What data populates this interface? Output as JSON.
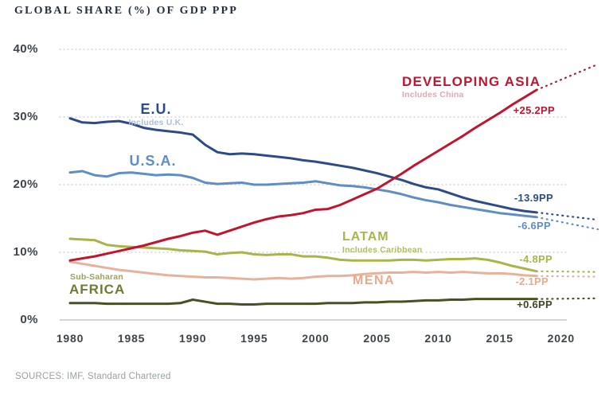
{
  "title": "GLOBAL SHARE (%) OF GDP PPP",
  "source_note": "SOURCES: IMF, Standard Chartered",
  "axis": {
    "y_label_color": "#3f444a",
    "grid_color": "#cbcbcb",
    "baseline_color": "#c6c6c6"
  },
  "chart_data": {
    "type": "line",
    "title": "GLOBAL SHARE (%) OF GDP PPP",
    "xlabel": "",
    "ylabel": "Global share (%) of GDP PPP",
    "xlim": [
      1980,
      2023.5
    ],
    "ylim": [
      0,
      40
    ],
    "grid": "horizontal-dotted",
    "legend_position": "inline-labels",
    "x_ticks": [
      1980,
      1985,
      1990,
      1995,
      2000,
      2005,
      2010,
      2015,
      2020
    ],
    "y_ticks": [
      {
        "label": "40%",
        "value": 40,
        "grid": "dotted"
      },
      {
        "label": "30%",
        "value": 30,
        "grid": "dotted"
      },
      {
        "label": "20%",
        "value": 20,
        "grid": "dotted"
      },
      {
        "label": "10%",
        "value": 10,
        "grid": "dotted"
      },
      {
        "label": "0%",
        "value": 0,
        "grid": "solid"
      }
    ],
    "x": [
      1980,
      1981,
      1982,
      1983,
      1984,
      1985,
      1986,
      1987,
      1988,
      1989,
      1990,
      1991,
      1992,
      1993,
      1994,
      1995,
      1996,
      1997,
      1998,
      1999,
      2000,
      2001,
      2002,
      2003,
      2004,
      2005,
      2006,
      2007,
      2008,
      2009,
      2010,
      2011,
      2012,
      2013,
      2014,
      2015,
      2016,
      2017,
      2018
    ],
    "series": [
      {
        "id": "eu",
        "name": "E.U.",
        "subtitle": "Includes U.K.",
        "subtitle_color": "#aebdd8",
        "color": "#2d4b88",
        "change_label": "-13.9PP",
        "change_color": "#2d4b88",
        "values": [
          29.8,
          29.2,
          29.1,
          29.3,
          29.4,
          29.0,
          28.4,
          28.1,
          27.9,
          27.7,
          27.4,
          25.9,
          24.8,
          24.5,
          24.6,
          24.5,
          24.3,
          24.1,
          23.9,
          23.6,
          23.4,
          23.1,
          22.8,
          22.5,
          22.1,
          21.7,
          21.2,
          20.7,
          20.1,
          19.6,
          19.3,
          18.7,
          18.1,
          17.6,
          17.2,
          16.8,
          16.4,
          16.1,
          15.9
        ],
        "projection": {
          "x": [
            2018,
            2023
          ],
          "values": [
            15.9,
            14.8
          ]
        }
      },
      {
        "id": "usa",
        "name": "U.S.A.",
        "subtitle": "",
        "subtitle_color": "#a9bad6",
        "color": "#5f8dc6",
        "change_label": "-6.6PP",
        "change_color": "#5f8dc6",
        "values": [
          21.8,
          22.0,
          21.4,
          21.2,
          21.7,
          21.8,
          21.6,
          21.4,
          21.5,
          21.4,
          21.0,
          20.3,
          20.1,
          20.2,
          20.3,
          20.0,
          20.0,
          20.1,
          20.2,
          20.3,
          20.5,
          20.2,
          19.9,
          19.8,
          19.6,
          19.3,
          19.0,
          18.6,
          18.1,
          17.7,
          17.4,
          17.0,
          16.7,
          16.4,
          16.1,
          15.8,
          15.6,
          15.4,
          15.2
        ],
        "projection": {
          "x": [
            2018,
            2023
          ],
          "values": [
            15.2,
            13.4
          ]
        }
      },
      {
        "id": "developing-asia",
        "name": "DEVELOPING ASIA",
        "subtitle": "Includes China",
        "subtitle_color": "#eaa4b1",
        "color": "#c3142f",
        "change_label": "+25.2PP",
        "change_color": "#c3142f",
        "values": [
          8.8,
          9.1,
          9.4,
          9.8,
          10.2,
          10.6,
          11.0,
          11.5,
          12.0,
          12.4,
          12.9,
          13.2,
          12.6,
          13.2,
          13.8,
          14.4,
          14.9,
          15.3,
          15.5,
          15.8,
          16.3,
          16.4,
          17.0,
          17.8,
          18.6,
          19.4,
          20.5,
          21.6,
          22.8,
          23.9,
          25.0,
          26.1,
          27.2,
          28.4,
          29.5,
          30.6,
          31.8,
          32.9,
          34.0
        ],
        "projection": {
          "x": [
            2018,
            2023
          ],
          "values": [
            34.0,
            37.8
          ]
        }
      },
      {
        "id": "latam",
        "name": "LATAM",
        "subtitle": "Includes Caribbean",
        "subtitle_color": "#b1bb66",
        "color": "#a9b44a",
        "change_label": "-4.8PP",
        "change_color": "#a9b44a",
        "values": [
          12.0,
          11.9,
          11.8,
          11.1,
          10.9,
          10.8,
          10.7,
          10.6,
          10.5,
          10.3,
          10.2,
          10.1,
          9.7,
          9.9,
          10.0,
          9.7,
          9.6,
          9.7,
          9.7,
          9.4,
          9.4,
          9.2,
          8.9,
          8.8,
          8.8,
          8.8,
          8.8,
          8.9,
          8.9,
          8.8,
          8.9,
          9.0,
          9.0,
          9.1,
          8.9,
          8.5,
          8.0,
          7.6,
          7.2
        ],
        "projection": {
          "x": [
            2018,
            2023
          ],
          "values": [
            7.2,
            7.1
          ]
        }
      },
      {
        "id": "mena",
        "name": "MENA",
        "subtitle": "",
        "subtitle_color": "#e8c2af",
        "color": "#e8b29a",
        "change_label": "-2.1PP",
        "change_color": "#e8a98c",
        "values": [
          8.6,
          8.3,
          8.0,
          7.7,
          7.4,
          7.2,
          7.0,
          6.8,
          6.6,
          6.5,
          6.4,
          6.3,
          6.3,
          6.2,
          6.1,
          6.0,
          6.1,
          6.2,
          6.1,
          6.2,
          6.4,
          6.5,
          6.5,
          6.6,
          6.8,
          6.9,
          7.0,
          7.0,
          7.1,
          7.0,
          7.1,
          7.0,
          7.1,
          7.0,
          6.9,
          6.9,
          6.8,
          6.6,
          6.5
        ],
        "projection": {
          "x": [
            2018,
            2023
          ],
          "values": [
            6.5,
            6.4
          ]
        }
      },
      {
        "id": "africa",
        "name": "AFRICA",
        "subtitle": "Sub-Saharan",
        "subtitle_color": "#9aa063",
        "name_color": "#6f7a35",
        "color": "#475222",
        "change_label": "+0.6PP",
        "change_color": "#3d4524",
        "values": [
          2.5,
          2.5,
          2.5,
          2.4,
          2.4,
          2.4,
          2.4,
          2.4,
          2.4,
          2.5,
          3.0,
          2.7,
          2.4,
          2.4,
          2.3,
          2.3,
          2.4,
          2.4,
          2.4,
          2.4,
          2.4,
          2.5,
          2.5,
          2.5,
          2.6,
          2.6,
          2.7,
          2.7,
          2.8,
          2.9,
          2.9,
          3.0,
          3.0,
          3.1,
          3.1,
          3.1,
          3.1,
          3.1,
          3.1
        ],
        "projection": {
          "x": [
            2018,
            2023
          ],
          "values": [
            3.1,
            3.2
          ]
        }
      }
    ]
  }
}
